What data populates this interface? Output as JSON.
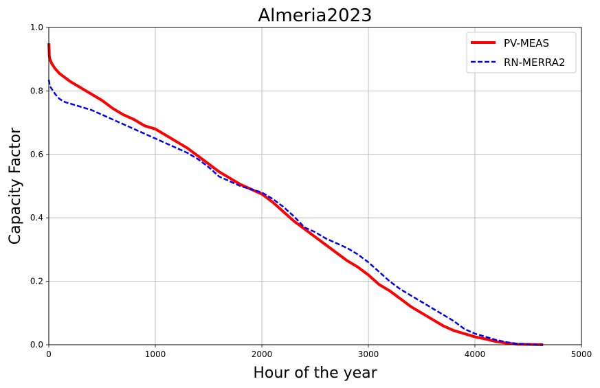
{
  "chart_data": {
    "type": "line",
    "title": "Almeria2023",
    "xlabel": "Hour of the year",
    "ylabel": "Capacity Factor",
    "xlim": [
      0,
      5000
    ],
    "ylim": [
      0,
      1.0
    ],
    "xticks": [
      "0",
      "1000",
      "2000",
      "3000",
      "4000",
      "5000"
    ],
    "xtick_values": [
      0,
      1000,
      2000,
      3000,
      4000,
      5000
    ],
    "yticks": [
      "0.0",
      "0.2",
      "0.4",
      "0.6",
      "0.8",
      "1.0"
    ],
    "ytick_values": [
      0.0,
      0.2,
      0.4,
      0.6,
      0.8,
      1.0
    ],
    "grid": true,
    "legend_position": "top-right",
    "series": [
      {
        "name": "PV-MEAS",
        "color": "#ff0000",
        "style": "solid",
        "x": [
          0,
          5,
          10,
          30,
          60,
          100,
          200,
          300,
          400,
          500,
          600,
          700,
          800,
          900,
          1000,
          1100,
          1200,
          1300,
          1400,
          1500,
          1600,
          1700,
          1800,
          1900,
          2000,
          2100,
          2200,
          2300,
          2400,
          2500,
          2600,
          2700,
          2800,
          2900,
          3000,
          3050,
          3100,
          3200,
          3300,
          3400,
          3500,
          3600,
          3700,
          3800,
          3900,
          4000,
          4100,
          4200,
          4300,
          4400,
          4500,
          4640
        ],
        "y": [
          0.95,
          0.91,
          0.9,
          0.885,
          0.87,
          0.855,
          0.83,
          0.81,
          0.79,
          0.77,
          0.745,
          0.725,
          0.71,
          0.69,
          0.68,
          0.66,
          0.64,
          0.62,
          0.595,
          0.57,
          0.545,
          0.525,
          0.505,
          0.49,
          0.475,
          0.45,
          0.42,
          0.39,
          0.365,
          0.34,
          0.315,
          0.29,
          0.265,
          0.245,
          0.22,
          0.205,
          0.19,
          0.17,
          0.145,
          0.12,
          0.1,
          0.08,
          0.06,
          0.045,
          0.035,
          0.025,
          0.018,
          0.01,
          0.005,
          0.002,
          0.001,
          0.0
        ]
      },
      {
        "name": "RN-MERRA2",
        "color": "#0000ff",
        "style": "dashed",
        "x": [
          0,
          10,
          30,
          60,
          100,
          150,
          200,
          300,
          400,
          500,
          600,
          700,
          800,
          900,
          1000,
          1100,
          1200,
          1300,
          1400,
          1500,
          1600,
          1700,
          1800,
          1900,
          2000,
          2100,
          2200,
          2300,
          2400,
          2500,
          2600,
          2700,
          2800,
          2900,
          3000,
          3100,
          3200,
          3300,
          3400,
          3500,
          3600,
          3700,
          3800,
          3900,
          4000,
          4100,
          4200,
          4300,
          4400,
          4500,
          4640
        ],
        "y": [
          0.835,
          0.815,
          0.805,
          0.79,
          0.775,
          0.765,
          0.76,
          0.75,
          0.74,
          0.725,
          0.71,
          0.695,
          0.68,
          0.665,
          0.65,
          0.635,
          0.62,
          0.605,
          0.585,
          0.56,
          0.53,
          0.515,
          0.5,
          0.49,
          0.48,
          0.46,
          0.435,
          0.405,
          0.37,
          0.355,
          0.335,
          0.32,
          0.305,
          0.285,
          0.26,
          0.23,
          0.2,
          0.175,
          0.155,
          0.135,
          0.115,
          0.095,
          0.075,
          0.05,
          0.035,
          0.025,
          0.015,
          0.008,
          0.003,
          0.001,
          0.0
        ]
      }
    ]
  }
}
